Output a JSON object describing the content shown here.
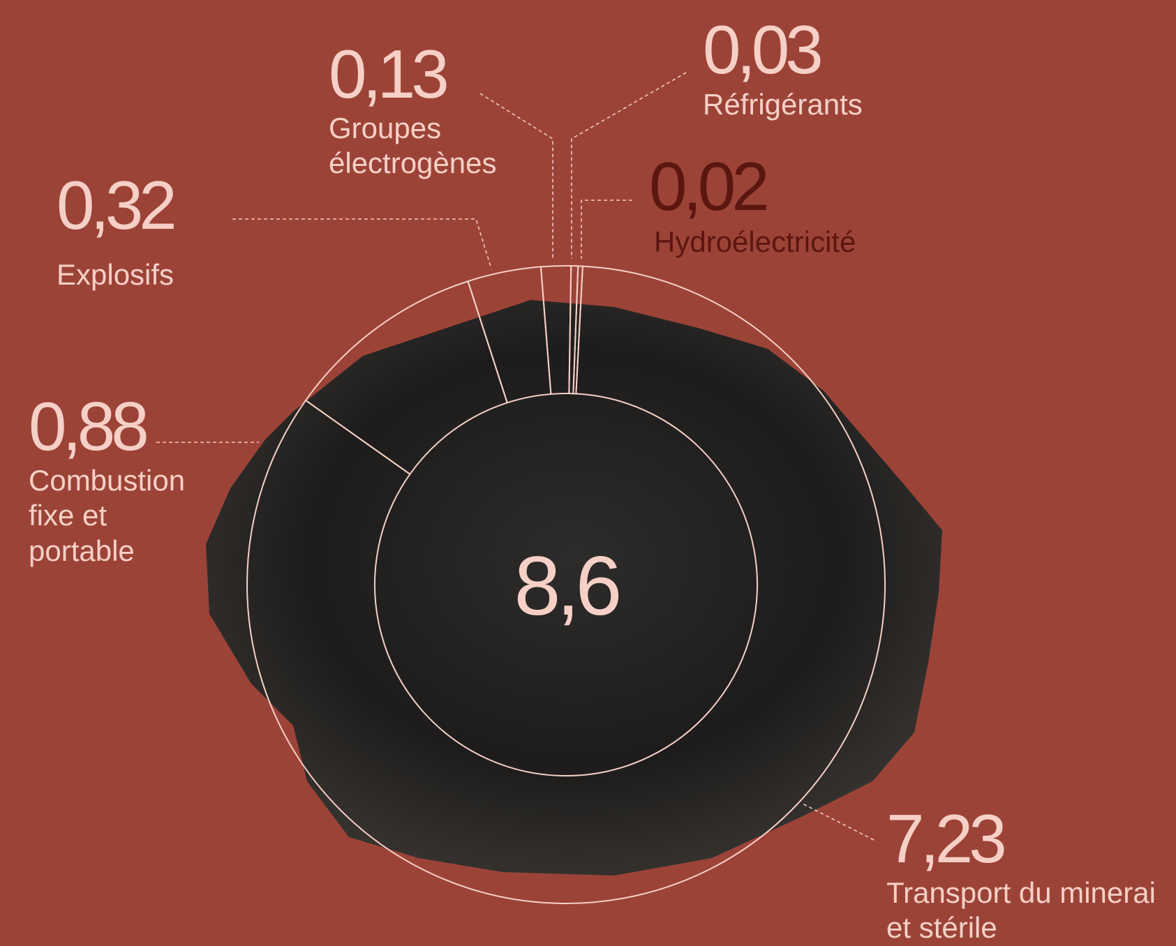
{
  "chart_data": {
    "type": "donut",
    "categories": [
      "Hydroélectricité",
      "Réfrigérants",
      "Groupes\nélectrogènes",
      "Explosifs",
      "Combustion\nfixe et\nportable",
      "Transport du minerai\net stérile"
    ],
    "values": [
      0.02,
      0.03,
      0.13,
      0.32,
      0.88,
      7.23
    ],
    "value_labels": [
      "0,02",
      "0,03",
      "0,13",
      "0,32",
      "0,88",
      "7,23"
    ],
    "colors": [
      "#5c1610",
      "#f6d0c6",
      "#f6d0c6",
      "#f6d0c6",
      "#f6d0c6",
      "#f6d0c6"
    ],
    "total": 8.6,
    "total_label": "8,6"
  }
}
